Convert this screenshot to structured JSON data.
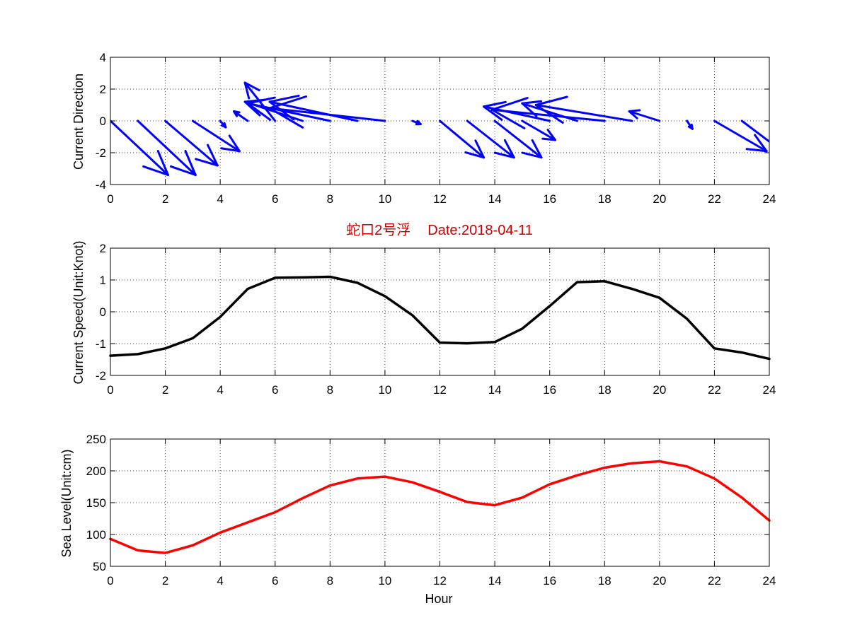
{
  "chart_data": [
    {
      "type": "quiver",
      "ylabel": "Current Direction",
      "xlim": [
        0,
        24
      ],
      "ylim": [
        -4,
        4
      ],
      "xticks": [
        0,
        2,
        4,
        6,
        8,
        10,
        12,
        14,
        16,
        18,
        20,
        22,
        24
      ],
      "yticks": [
        -4,
        -2,
        0,
        2,
        4
      ],
      "color": "#0000ff",
      "vectors": [
        {
          "x": 0,
          "u": 2.1,
          "v": -3.4
        },
        {
          "x": 1,
          "u": 2.1,
          "v": -3.4
        },
        {
          "x": 2,
          "u": 1.9,
          "v": -2.8
        },
        {
          "x": 3,
          "u": 1.7,
          "v": -1.9
        },
        {
          "x": 4,
          "u": 0.2,
          "v": -0.4
        },
        {
          "x": 5,
          "u": -0.5,
          "v": 0.6
        },
        {
          "x": 6,
          "u": -1.1,
          "v": 2.4
        },
        {
          "x": 7,
          "u": -2.1,
          "v": 1.2
        },
        {
          "x": 8,
          "u": -3.0,
          "v": 1.1
        },
        {
          "x": 9,
          "u": -3.2,
          "v": 1.2
        },
        {
          "x": 10,
          "u": -4.2,
          "v": 0.8
        },
        {
          "x": 11,
          "u": 0.3,
          "v": -0.2
        },
        {
          "x": 12,
          "u": 1.6,
          "v": -2.3
        },
        {
          "x": 13,
          "u": 1.7,
          "v": -2.3
        },
        {
          "x": 14,
          "u": 1.7,
          "v": -2.3
        },
        {
          "x": 15,
          "u": 1.2,
          "v": -1.2
        },
        {
          "x": 16,
          "u": -2.4,
          "v": 0.9
        },
        {
          "x": 17,
          "u": -2.0,
          "v": 1.1
        },
        {
          "x": 18,
          "u": -4.1,
          "v": 0.7
        },
        {
          "x": 19,
          "u": -3.5,
          "v": 1.0
        },
        {
          "x": 20,
          "u": -1.1,
          "v": 0.6
        },
        {
          "x": 21,
          "u": 0.2,
          "v": -0.5
        },
        {
          "x": 22,
          "u": 1.9,
          "v": -1.9
        },
        {
          "x": 23,
          "u": 2.0,
          "v": -2.6
        }
      ]
    },
    {
      "type": "line",
      "title_parts": [
        "蛇口2号浮",
        "Date:2018-04-11"
      ],
      "title_color": "#cc0000",
      "ylabel": "Current Speed(Unit:Knot)",
      "xlim": [
        0,
        24
      ],
      "ylim": [
        -2,
        2
      ],
      "xticks": [
        0,
        2,
        4,
        6,
        8,
        10,
        12,
        14,
        16,
        18,
        20,
        22,
        24
      ],
      "yticks": [
        -2,
        -1,
        0,
        1,
        2
      ],
      "color": "#000000",
      "x": [
        0,
        1,
        2,
        3,
        4,
        5,
        6,
        7,
        8,
        9,
        10,
        11,
        12,
        13,
        14,
        15,
        16,
        17,
        18,
        19,
        20,
        21,
        22,
        23,
        24
      ],
      "y": [
        -1.38,
        -1.33,
        -1.15,
        -0.83,
        -0.16,
        0.72,
        1.07,
        1.08,
        1.1,
        0.91,
        0.49,
        -0.11,
        -0.97,
        -0.99,
        -0.95,
        -0.53,
        0.18,
        0.93,
        0.96,
        0.72,
        0.44,
        -0.22,
        -1.15,
        -1.28,
        -1.48
      ]
    },
    {
      "type": "line",
      "ylabel": "Sea Level(Unit:cm)",
      "xlabel": "Hour",
      "xlim": [
        0,
        24
      ],
      "ylim": [
        50,
        250
      ],
      "xticks": [
        0,
        2,
        4,
        6,
        8,
        10,
        12,
        14,
        16,
        18,
        20,
        22,
        24
      ],
      "yticks": [
        50,
        100,
        150,
        200,
        250
      ],
      "color": "#ff0000",
      "x": [
        0,
        1,
        2,
        3,
        4,
        5,
        6,
        7,
        8,
        9,
        10,
        11,
        12,
        13,
        14,
        15,
        16,
        17,
        18,
        19,
        20,
        21,
        22,
        23,
        24
      ],
      "y": [
        93,
        75,
        71,
        83,
        103,
        119,
        135,
        157,
        177,
        188,
        191,
        182,
        167,
        151,
        146,
        158,
        179,
        193,
        205,
        212,
        215,
        207,
        188,
        158,
        122
      ]
    }
  ]
}
